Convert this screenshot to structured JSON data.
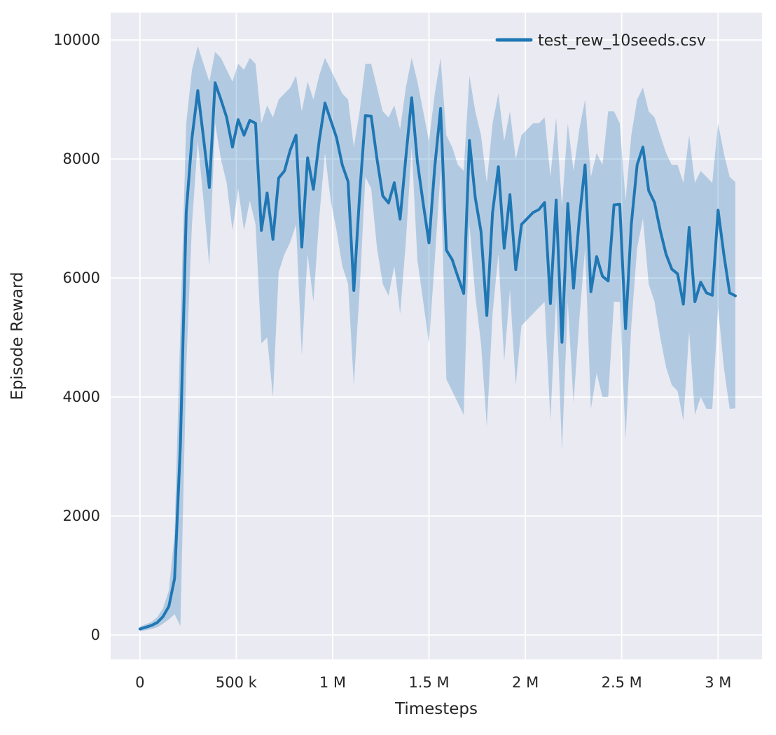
{
  "figure": {
    "x_axis_label": "Timesteps",
    "y_axis_label": "Episode Reward",
    "legend": {
      "label": "test_rew_10seeds.csv"
    }
  },
  "chart_data": {
    "type": "line",
    "title": "",
    "xlabel": "Timesteps",
    "ylabel": "Episode Reward",
    "legend_entries": [
      "test_rew_10seeds.csv"
    ],
    "legend_position": "upper right",
    "grid": true,
    "style": {
      "panel_background": "#eaeaf2",
      "grid_color": "#ffffff",
      "line_color": "#1f77b4",
      "band_color": "rgba(31,119,180,0.27)",
      "text_color": "#262626"
    },
    "xlim": [
      -152000,
      3228000
    ],
    "ylim": [
      -410,
      10460
    ],
    "x_ticks": [
      0,
      500000,
      1000000,
      1500000,
      2000000,
      2500000,
      3000000
    ],
    "x_tick_labels": [
      "0",
      "500 k",
      "1 M",
      "1.5 M",
      "2 M",
      "2.5 M",
      "3 M"
    ],
    "y_ticks": [
      0,
      2000,
      4000,
      6000,
      8000,
      10000
    ],
    "y_tick_labels": [
      "0",
      "2000",
      "4000",
      "6000",
      "8000",
      "10000"
    ],
    "series": [
      {
        "name": "test_rew_10seeds.csv",
        "x": [
          0,
          30000,
          60000,
          90000,
          120000,
          150000,
          180000,
          210000,
          240000,
          270000,
          300000,
          330000,
          360000,
          390000,
          420000,
          450000,
          480000,
          510000,
          540000,
          570000,
          600000,
          630000,
          660000,
          690000,
          720000,
          750000,
          780000,
          810000,
          840000,
          870000,
          900000,
          930000,
          960000,
          990000,
          1020000,
          1050000,
          1080000,
          1110000,
          1140000,
          1170000,
          1200000,
          1230000,
          1260000,
          1290000,
          1320000,
          1350000,
          1380000,
          1410000,
          1440000,
          1470000,
          1500000,
          1530000,
          1560000,
          1590000,
          1620000,
          1650000,
          1680000,
          1710000,
          1740000,
          1770000,
          1800000,
          1830000,
          1860000,
          1890000,
          1920000,
          1950000,
          1980000,
          2010000,
          2040000,
          2070000,
          2100000,
          2130000,
          2160000,
          2190000,
          2220000,
          2250000,
          2280000,
          2310000,
          2340000,
          2370000,
          2400000,
          2430000,
          2460000,
          2490000,
          2520000,
          2550000,
          2580000,
          2610000,
          2640000,
          2670000,
          2700000,
          2730000,
          2760000,
          2790000,
          2820000,
          2850000,
          2880000,
          2910000,
          2940000,
          2970000,
          3000000,
          3030000,
          3060000,
          3090000
        ],
        "mean": [
          100,
          130,
          160,
          210,
          310,
          480,
          950,
          3200,
          7100,
          8350,
          9150,
          8350,
          7520,
          9280,
          9000,
          8700,
          8200,
          8660,
          8400,
          8650,
          8600,
          6800,
          7430,
          6650,
          7680,
          7800,
          8150,
          8400,
          6520,
          8020,
          7490,
          8300,
          8940,
          8650,
          8360,
          7900,
          7620,
          5790,
          7400,
          8730,
          8720,
          8000,
          7380,
          7260,
          7600,
          6990,
          8030,
          9030,
          7950,
          7250,
          6590,
          7870,
          8850,
          6470,
          6310,
          6020,
          5740,
          8310,
          7350,
          6780,
          5370,
          7100,
          7870,
          6500,
          7400,
          6140,
          6900,
          7000,
          7100,
          7150,
          7270,
          5570,
          7310,
          4920,
          7250,
          5830,
          7000,
          7900,
          5770,
          6360,
          6030,
          5950,
          7230,
          7240,
          5150,
          6900,
          7900,
          8200,
          7470,
          7270,
          6800,
          6400,
          6150,
          6070,
          5560,
          6850,
          5600,
          5930,
          5750,
          5710,
          7140,
          6400,
          5750,
          5700
        ],
        "lower": [
          60,
          80,
          100,
          130,
          190,
          260,
          350,
          150,
          4500,
          6900,
          8300,
          7300,
          6200,
          8600,
          8000,
          7600,
          6800,
          7500,
          6800,
          7300,
          6900,
          4900,
          5000,
          4000,
          6100,
          6400,
          6600,
          6900,
          4700,
          6400,
          5600,
          7000,
          8100,
          7300,
          6800,
          6200,
          5900,
          4200,
          5800,
          7700,
          7500,
          6500,
          5900,
          5700,
          6200,
          5400,
          6600,
          8200,
          6300,
          5600,
          4900,
          6300,
          7800,
          4300,
          4100,
          3900,
          3700,
          6900,
          5700,
          4900,
          3500,
          5400,
          6400,
          4600,
          5800,
          4200,
          5200,
          5300,
          5400,
          5500,
          5600,
          3600,
          5700,
          3100,
          5600,
          3900,
          5300,
          6500,
          3800,
          4400,
          4000,
          4000,
          5600,
          5600,
          3300,
          5200,
          6500,
          7000,
          5900,
          5600,
          5000,
          4500,
          4200,
          4100,
          3600,
          5100,
          3700,
          4000,
          3800,
          3800,
          5500,
          4500,
          3800,
          3810
        ],
        "upper": [
          140,
          180,
          220,
          300,
          450,
          750,
          1700,
          5200,
          8600,
          9500,
          9900,
          9600,
          9300,
          9800,
          9700,
          9500,
          9300,
          9600,
          9500,
          9700,
          9600,
          8600,
          8900,
          8700,
          9000,
          9100,
          9200,
          9400,
          8800,
          9300,
          9000,
          9400,
          9700,
          9500,
          9300,
          9100,
          9000,
          8200,
          8800,
          9600,
          9600,
          9200,
          8800,
          8700,
          8900,
          8500,
          9200,
          9700,
          9300,
          8800,
          8300,
          9100,
          9700,
          8400,
          8200,
          7900,
          7800,
          9400,
          8800,
          8400,
          7600,
          8600,
          9100,
          8300,
          8800,
          8000,
          8400,
          8500,
          8600,
          8600,
          8700,
          7700,
          8700,
          7200,
          8600,
          7800,
          8500,
          9000,
          7700,
          8100,
          7900,
          8800,
          8800,
          8600,
          7300,
          8400,
          9000,
          9200,
          8800,
          8700,
          8400,
          8100,
          7900,
          7900,
          7600,
          8400,
          7600,
          7800,
          7700,
          7600,
          8600,
          8100,
          7700,
          7610
        ]
      }
    ]
  }
}
